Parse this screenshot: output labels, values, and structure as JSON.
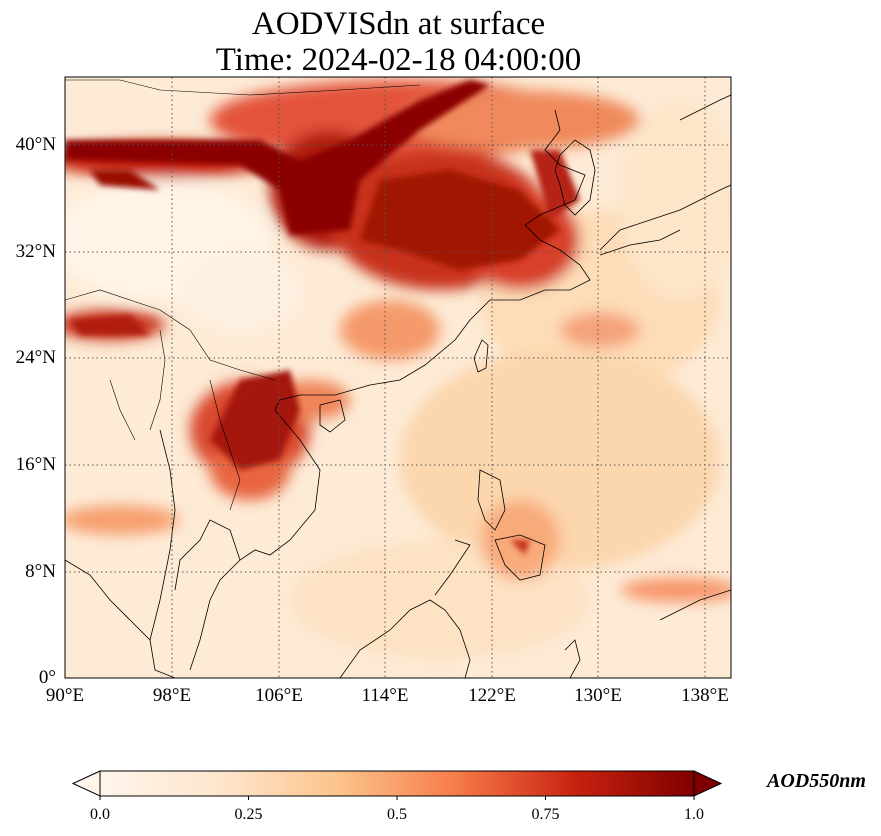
{
  "title_line1": "AODVISdn at surface",
  "title_line2": "Time: 2024-02-18 04:00:00",
  "lat_ticks": [
    "40°N",
    "32°N",
    "24°N",
    "16°N",
    "8°N",
    "0°"
  ],
  "lon_ticks": [
    "90°E",
    "98°E",
    "106°E",
    "114°E",
    "122°E",
    "130°E",
    "138°E"
  ],
  "colorbar": {
    "label": "AOD550nm",
    "ticks": [
      "0.0",
      "0.25",
      "0.5",
      "0.75",
      "1.0"
    ],
    "colors": [
      "#fff5eb",
      "#fdd9a8",
      "#fca56c",
      "#e8553b",
      "#b01a10",
      "#7f0000"
    ]
  },
  "map_extent": {
    "lon": [
      90,
      140
    ],
    "lat": [
      0,
      44
    ]
  }
}
